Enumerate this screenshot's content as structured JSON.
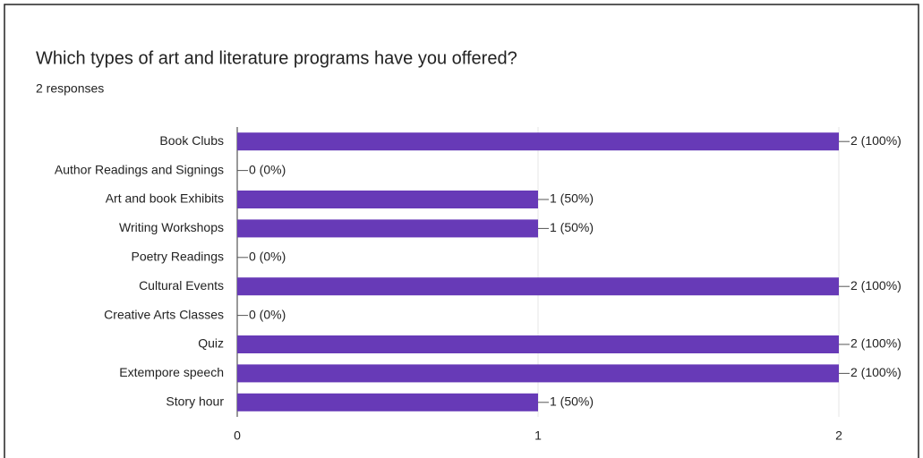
{
  "chart_data": {
    "type": "bar",
    "orientation": "horizontal",
    "title": "Which types of art and literature programs have you offered?",
    "subtitle": "2 responses",
    "categories": [
      "Book Clubs",
      "Author Readings and Signings",
      "Art and book Exhibits",
      "Writing Workshops",
      "Poetry Readings",
      "Cultural Events",
      "Creative Arts Classes",
      "Quiz",
      "Extempore speech",
      "Story hour"
    ],
    "values": [
      2,
      0,
      1,
      1,
      0,
      2,
      0,
      2,
      2,
      1
    ],
    "value_labels": [
      "2 (100%)",
      "0 (0%)",
      "1 (50%)",
      "1 (50%)",
      "0 (0%)",
      "2 (100%)",
      "0 (0%)",
      "2 (100%)",
      "2 (100%)",
      "1 (50%)"
    ],
    "color": "#673ab7",
    "xlim": [
      0,
      2
    ],
    "xticks": [
      0,
      1,
      2
    ],
    "grid": true
  }
}
